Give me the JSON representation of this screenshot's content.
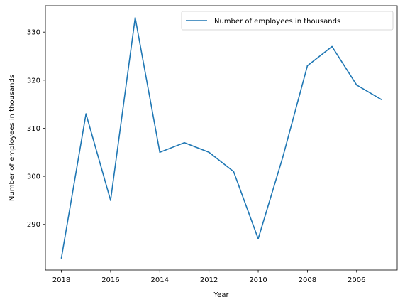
{
  "chart_data": {
    "type": "line",
    "title": "",
    "xlabel": "Year",
    "ylabel": "Number of employees in thousands",
    "x": [
      2018,
      2017,
      2016,
      2015,
      2014,
      2013,
      2012,
      2011,
      2010,
      2009,
      2008,
      2007,
      2006,
      2005
    ],
    "xlim": [
      2018.65,
      2004.35
    ],
    "x_inverted": true,
    "xticks": [
      2018,
      2016,
      2014,
      2012,
      2010,
      2008,
      2006
    ],
    "xtick_labels": [
      "2018",
      "2016",
      "2014",
      "2012",
      "2010",
      "2008",
      "2006"
    ],
    "ylim": [
      280.5,
      335.5
    ],
    "yticks": [
      290,
      300,
      310,
      320,
      330
    ],
    "ytick_labels": [
      "290",
      "300",
      "310",
      "320",
      "330"
    ],
    "series": [
      {
        "name": "Number of employees in thousands",
        "color": "#1f77b4",
        "values": [
          283,
          313,
          295,
          333,
          305,
          307,
          305,
          301,
          287,
          304,
          323,
          327,
          319,
          316
        ]
      }
    ],
    "legend": {
      "position": "top-right"
    },
    "grid": false
  }
}
